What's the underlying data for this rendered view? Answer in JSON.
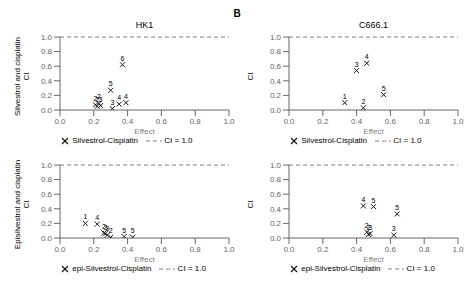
{
  "title": "B",
  "chart_data": [
    {
      "type": "scatter",
      "title": "HK1",
      "x_label": "Effect",
      "y_label": "Silvestrol and cisplatin\nCI",
      "x": [
        0.21,
        0.22,
        0.23,
        0.24,
        0.3,
        0.31,
        0.35,
        0.37,
        0.39
      ],
      "series": [
        {
          "name": "Silvestrol-Cisplatin",
          "color": "#1a1a1a",
          "marker": "x",
          "values": [
            0.07,
            0.05,
            0.09,
            0.06,
            0.27,
            0.02,
            0.08,
            0.62,
            0.1
          ],
          "labels": [
            "2",
            "2",
            "2",
            "3",
            "5",
            "3",
            "4",
            "6",
            "4"
          ]
        }
      ],
      "hlines": [
        {
          "name": "CI = 1.0",
          "y": 1.0,
          "color": "gray",
          "line_style": "dashed"
        }
      ],
      "xlim": [
        0.0,
        1.0
      ],
      "ylim": [
        0.0,
        1.0
      ],
      "xticks": [
        {
          "value": 0.0,
          "label": "0.0"
        },
        0.2,
        0.4,
        0.6,
        0.8,
        {
          "value": 1.0,
          "label": "1.0"
        }
      ],
      "yticks": [
        {
          "value": 0.0,
          "label": "0.0"
        },
        0.2,
        0.4,
        0.6,
        0.8,
        {
          "value": 1.0,
          "label": "1.0"
        }
      ],
      "grid": false,
      "legend": "bottom"
    },
    {
      "type": "scatter",
      "title": "C666.1",
      "x_label": "Effect",
      "y_label": "CI",
      "x": [
        0.33,
        0.4,
        0.44,
        0.46,
        0.56
      ],
      "series": [
        {
          "name": "Silvestrol-Cisplatin",
          "color": "#1a1a1a",
          "marker": "x",
          "values": [
            0.1,
            0.54,
            0.03,
            0.64,
            0.21
          ],
          "labels": [
            "1",
            "3",
            "2",
            "4",
            "5"
          ]
        }
      ],
      "hlines": [
        {
          "name": "CI = 1.0",
          "y": 1.0,
          "color": "gray",
          "line_style": "dashed"
        }
      ],
      "xlim": [
        0.0,
        1.0
      ],
      "ylim": [
        0.0,
        1.0
      ],
      "xticks": [
        {
          "value": 0.0,
          "label": "0.0"
        },
        0.2,
        0.4,
        0.6,
        0.8,
        {
          "value": 1.0,
          "label": "1.0"
        }
      ],
      "yticks": [
        {
          "value": 0.0,
          "label": "0.0"
        },
        0.2,
        0.4,
        0.6,
        0.8,
        {
          "value": 1.0,
          "label": "1.0"
        }
      ],
      "grid": false,
      "legend": "bottom"
    },
    {
      "type": "scatter",
      "x_label": "Effect",
      "y_label": "Episilvestrol and cisplatin\nCI",
      "x": [
        0.15,
        0.22,
        0.26,
        0.27,
        0.28,
        0.3,
        0.38,
        0.43
      ],
      "series": [
        {
          "name": "epi-Silvestrol-Cisplatin",
          "color": "#1a1a1a",
          "marker": "x",
          "values": [
            0.2,
            0.19,
            0.07,
            0.06,
            0.04,
            0.01,
            0.02,
            0.01
          ],
          "labels": [
            "1",
            "4",
            "2",
            "3",
            "3",
            "2",
            "5",
            "5"
          ]
        }
      ],
      "hlines": [
        {
          "name": "CI = 1.0",
          "y": 1.0,
          "color": "gray",
          "line_style": "dashed"
        }
      ],
      "xlim": [
        0.0,
        1.0
      ],
      "ylim": [
        0.0,
        1.0
      ],
      "xticks": [
        {
          "value": 0.0,
          "label": "0.0"
        },
        0.2,
        0.4,
        0.6,
        0.8,
        {
          "value": 1.0,
          "label": "1.0"
        }
      ],
      "yticks": [
        {
          "value": 0.0,
          "label": "0.0"
        },
        0.2,
        0.4,
        0.6,
        0.8,
        {
          "value": 1.0,
          "label": "1.0"
        }
      ],
      "grid": false,
      "legend": "bottom"
    },
    {
      "type": "scatter",
      "x_label": "Effect",
      "y_label": "CI",
      "x": [
        0.44,
        0.46,
        0.47,
        0.48,
        0.5,
        0.62,
        0.64
      ],
      "series": [
        {
          "name": "epi-Silvestrol-Cisplatin",
          "color": "#1a1a1a",
          "marker": "x",
          "values": [
            0.44,
            0.08,
            0.05,
            0.06,
            0.43,
            0.04,
            0.33
          ],
          "labels": [
            "4",
            "2",
            "2",
            "3",
            "5",
            "3",
            "5"
          ]
        }
      ],
      "hlines": [
        {
          "name": "CI = 1.0",
          "y": 1.0,
          "color": "gray",
          "line_style": "dashed"
        }
      ],
      "xlim": [
        0.0,
        1.0
      ],
      "ylim": [
        0.0,
        1.0
      ],
      "xticks": [
        {
          "value": 0.0,
          "label": "0.0"
        },
        0.2,
        0.4,
        0.6,
        0.8,
        {
          "value": 1.0,
          "label": "1.0"
        }
      ],
      "yticks": [
        {
          "value": 0.0,
          "label": "0.0"
        },
        0.2,
        0.4,
        0.6,
        0.8,
        {
          "value": 1.0,
          "label": "1.0"
        }
      ],
      "grid": false,
      "legend": "bottom"
    }
  ]
}
